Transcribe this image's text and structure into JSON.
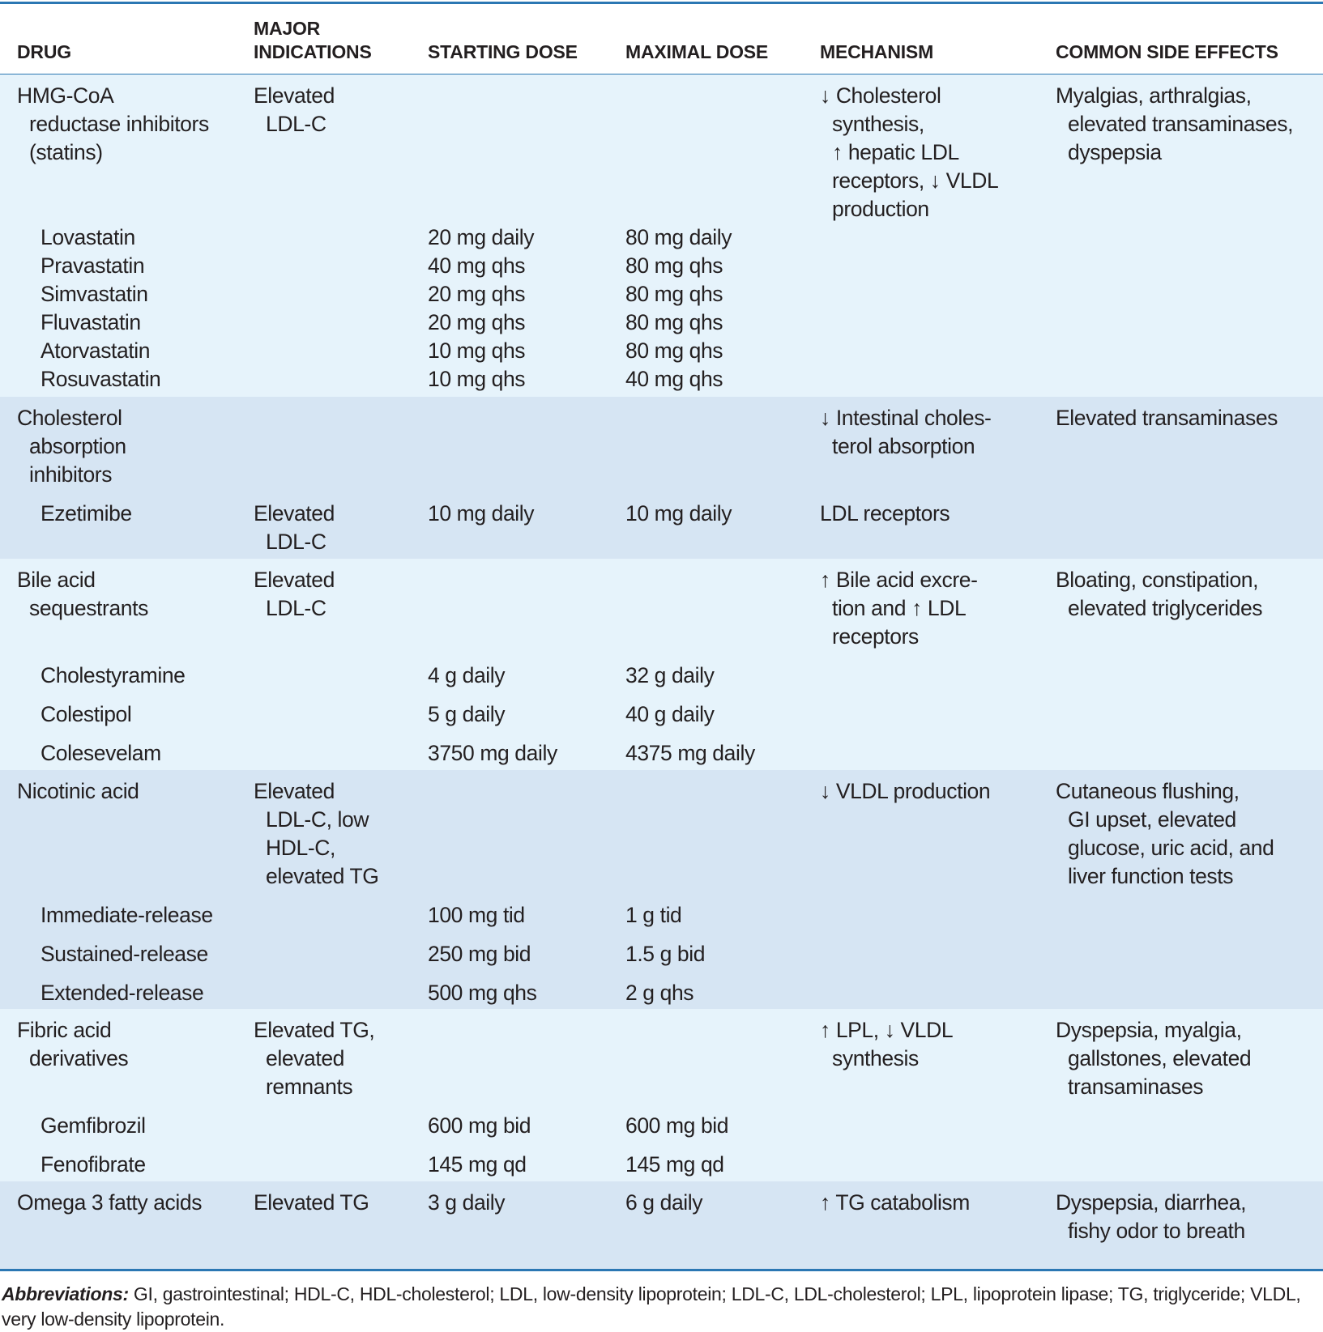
{
  "headers": {
    "drug": [
      "DRUG"
    ],
    "indications": [
      "MAJOR",
      "INDICATIONS"
    ],
    "start": [
      "STARTING DOSE"
    ],
    "max": [
      "MAXIMAL DOSE"
    ],
    "mechanism": [
      "MECHANISM"
    ],
    "side": [
      "COMMON SIDE EFFECTS"
    ]
  },
  "colors": {
    "rule": "#2b77b3",
    "row_light": "#e6f3fb",
    "row_dark": "#d6e5f3"
  },
  "groups": [
    {
      "drug": [
        "HMG-CoA",
        "reductase inhibitors",
        "(statins)"
      ],
      "indications": [
        "Elevated",
        "LDL-C"
      ],
      "mechanism": [
        "↓ Cholesterol",
        "synthesis,",
        "↑ hepatic LDL",
        "receptors, ↓ VLDL",
        "production"
      ],
      "side": [
        "Myalgias, arthralgias,",
        "elevated transaminases,",
        "dyspepsia"
      ],
      "items": [
        {
          "drug": "Lovastatin",
          "start": "20 mg daily",
          "max": "80 mg daily"
        },
        {
          "drug": "Pravastatin",
          "start": "40 mg qhs",
          "max": "80 mg qhs"
        },
        {
          "drug": "Simvastatin",
          "start": "20 mg qhs",
          "max": "80 mg qhs"
        },
        {
          "drug": "Fluvastatin",
          "start": "20 mg qhs",
          "max": "80 mg qhs"
        },
        {
          "drug": "Atorvastatin",
          "start": "10 mg qhs",
          "max": "80 mg qhs"
        },
        {
          "drug": "Rosuvastatin",
          "start": "10 mg qhs",
          "max": "40 mg qhs"
        }
      ]
    },
    {
      "drug": [
        "Cholesterol",
        "absorption",
        "inhibitors"
      ],
      "mechanism": [
        "↓ Intestinal choles-",
        "terol absorption"
      ],
      "side": [
        "Elevated transaminases"
      ],
      "items": [
        {
          "drug": "Ezetimibe",
          "indications": [
            "Elevated",
            "LDL-C"
          ],
          "start": "10 mg daily",
          "max": "10 mg daily",
          "mechanism": "LDL receptors"
        }
      ]
    },
    {
      "drug": [
        "Bile acid",
        "sequestrants"
      ],
      "indications": [
        "Elevated",
        "LDL-C"
      ],
      "mechanism": [
        "↑ Bile acid excre-",
        "tion and ↑ LDL",
        "receptors"
      ],
      "side": [
        "Bloating, constipation,",
        "elevated triglycerides"
      ],
      "items": [
        {
          "drug": "Cholestyramine",
          "start": "4 g daily",
          "max": "32 g daily"
        },
        {
          "drug": "Colestipol",
          "start": "5 g daily",
          "max": "40 g daily"
        },
        {
          "drug": "Colesevelam",
          "start": "3750 mg daily",
          "max": "4375 mg daily"
        }
      ]
    },
    {
      "drug": [
        "Nicotinic acid"
      ],
      "indications": [
        "Elevated",
        "LDL-C, low",
        "HDL-C,",
        "elevated TG"
      ],
      "mechanism": [
        "↓ VLDL production"
      ],
      "side": [
        "Cutaneous flushing,",
        "GI upset, elevated",
        "glucose, uric acid, and",
        "liver function tests"
      ],
      "items": [
        {
          "drug": "Immediate-release",
          "start": "100 mg tid",
          "max": "1 g tid"
        },
        {
          "drug": "Sustained-release",
          "start": "250 mg bid",
          "max": "1.5 g bid"
        },
        {
          "drug": "Extended-release",
          "start": "500 mg qhs",
          "max": "2 g qhs"
        }
      ]
    },
    {
      "drug": [
        "Fibric acid",
        "derivatives"
      ],
      "indications": [
        "Elevated TG,",
        "elevated",
        "remnants"
      ],
      "mechanism": [
        "↑ LPL, ↓ VLDL",
        "synthesis"
      ],
      "side": [
        "Dyspepsia, myalgia,",
        "gallstones, elevated",
        "transaminases"
      ],
      "items": [
        {
          "drug": "Gemfibrozil",
          "start": "600 mg bid",
          "max": "600 mg bid"
        },
        {
          "drug": "Fenofibrate",
          "start": "145 mg qd",
          "max": "145 mg qd"
        }
      ]
    },
    {
      "drug": [
        "Omega 3 fatty acids"
      ],
      "indications": [
        "Elevated TG"
      ],
      "start": [
        "3 g daily"
      ],
      "max": [
        "6 g daily"
      ],
      "mechanism": [
        "↑ TG catabolism"
      ],
      "side": [
        "Dyspepsia, diarrhea,",
        "fishy odor to breath"
      ],
      "items": []
    }
  ],
  "footnote": {
    "label": "Abbreviations:",
    "text": " GI, gastrointestinal; HDL-C, HDL-cholesterol; LDL, low-density lipoprotein; LDL-C, LDL-cholesterol; LPL, lipoprotein lipase; TG, triglyceride; VLDL, very low-density lipoprotein."
  }
}
